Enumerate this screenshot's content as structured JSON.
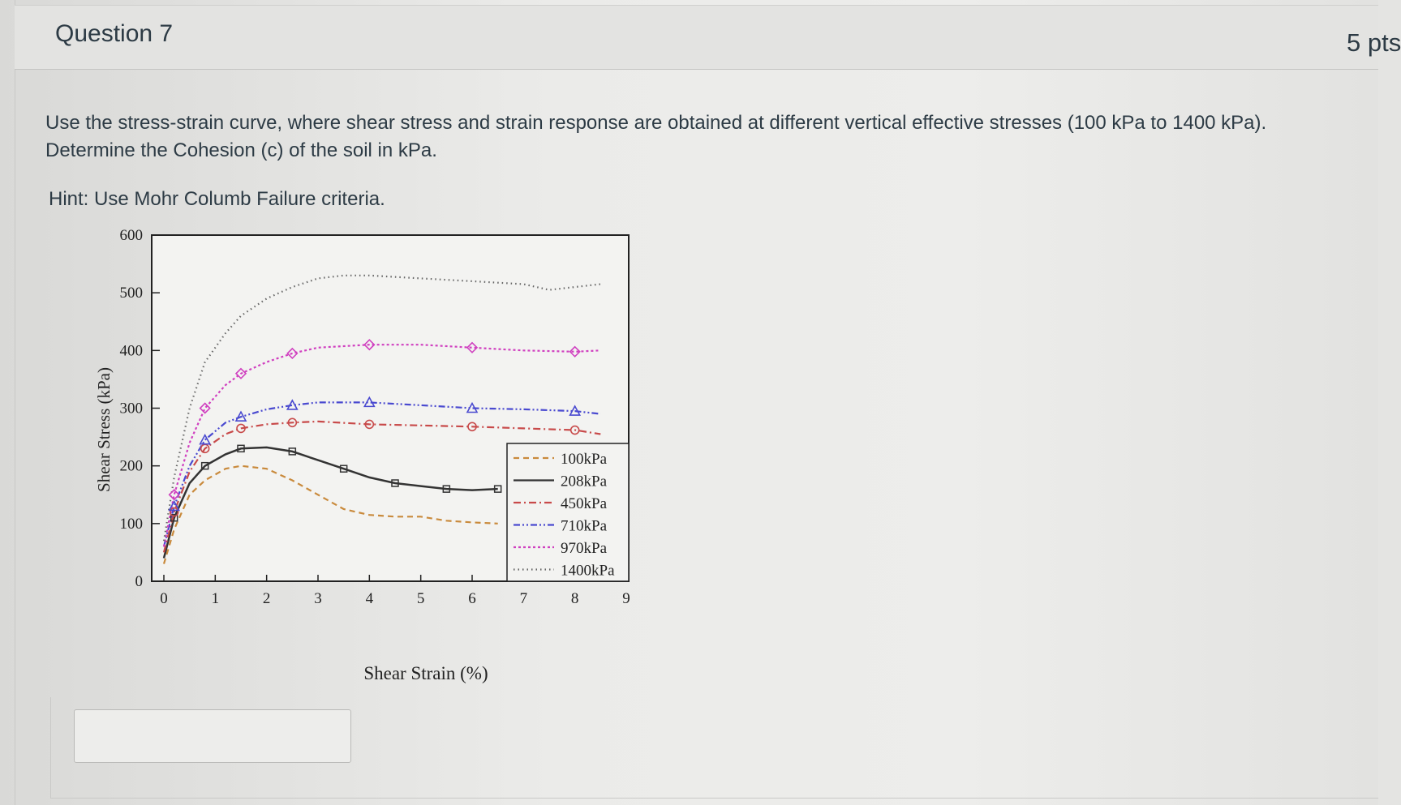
{
  "question": {
    "title": "Question 7",
    "points": "5 pts",
    "text_line1": "Use the stress-strain curve, where shear stress and strain response are obtained at different vertical effective stresses (100 kPa to 1400 kPa).",
    "text_line2": "Determine the Cohesion (c) of the soil in kPa.",
    "hint": "Hint: Use Mohr Columb Failure criteria."
  },
  "answer": {
    "value": ""
  },
  "chart_data": {
    "type": "line",
    "xlabel": "Shear Strain (%)",
    "ylabel": "Shear Stress (kPa)",
    "xlim": [
      0,
      9
    ],
    "ylim": [
      0,
      600
    ],
    "xticks": [
      "0",
      "1",
      "2",
      "3",
      "4",
      "5",
      "6",
      "7",
      "8",
      "9"
    ],
    "yticks": [
      "0",
      "100",
      "200",
      "300",
      "400",
      "500",
      "600"
    ],
    "legend_position": "bottom-right",
    "series": [
      {
        "name": "100kPa",
        "color": "#c98a3c",
        "style": "dashed",
        "x": [
          0,
          0.2,
          0.5,
          0.8,
          1.2,
          1.5,
          2.0,
          2.5,
          3.0,
          3.5,
          4.0,
          4.5,
          5.0,
          5.5,
          6.0,
          6.5
        ],
        "y": [
          30,
          90,
          150,
          175,
          195,
          200,
          195,
          175,
          150,
          125,
          115,
          112,
          112,
          105,
          102,
          100
        ]
      },
      {
        "name": "208kPa",
        "color": "#333333",
        "style": "solid",
        "x": [
          0,
          0.2,
          0.5,
          0.8,
          1.2,
          1.5,
          2.0,
          2.5,
          3.0,
          3.5,
          4.0,
          4.5,
          5.0,
          5.5,
          6.0,
          6.5
        ],
        "y": [
          40,
          110,
          170,
          200,
          220,
          230,
          232,
          225,
          210,
          195,
          180,
          170,
          165,
          160,
          158,
          160
        ]
      },
      {
        "name": "450kPa",
        "color": "#c84a4a",
        "style": "dashdot",
        "x": [
          0,
          0.2,
          0.5,
          0.8,
          1.2,
          1.5,
          2.0,
          2.5,
          3.0,
          4.0,
          5.0,
          6.0,
          7.0,
          8.0,
          8.5
        ],
        "y": [
          50,
          120,
          190,
          230,
          255,
          265,
          272,
          275,
          277,
          272,
          270,
          268,
          265,
          262,
          255
        ]
      },
      {
        "name": "710kPa",
        "color": "#4a4ad0",
        "style": "dashdotdot",
        "x": [
          0,
          0.2,
          0.5,
          0.8,
          1.2,
          1.5,
          2.0,
          2.5,
          3.0,
          4.0,
          5.0,
          6.0,
          7.0,
          8.0,
          8.5
        ],
        "y": [
          60,
          130,
          200,
          245,
          275,
          285,
          298,
          305,
          310,
          310,
          305,
          300,
          298,
          295,
          290
        ]
      },
      {
        "name": "970kPa",
        "color": "#d040c0",
        "style": "dotted",
        "x": [
          0,
          0.2,
          0.5,
          0.8,
          1.2,
          1.5,
          2.0,
          2.5,
          3.0,
          4.0,
          5.0,
          6.0,
          7.0,
          8.0,
          8.5
        ],
        "y": [
          60,
          150,
          240,
          300,
          340,
          360,
          380,
          395,
          405,
          410,
          410,
          405,
          400,
          398,
          400
        ]
      },
      {
        "name": "1400kPa",
        "color": "#666666",
        "style": "finedot",
        "x": [
          0,
          0.2,
          0.5,
          0.8,
          1.2,
          1.5,
          2.0,
          2.5,
          3.0,
          3.5,
          4.0,
          5.0,
          6.0,
          7.0,
          7.5,
          8.5
        ],
        "y": [
          70,
          180,
          300,
          380,
          430,
          460,
          490,
          510,
          525,
          530,
          530,
          525,
          520,
          515,
          505,
          515
        ]
      }
    ]
  }
}
